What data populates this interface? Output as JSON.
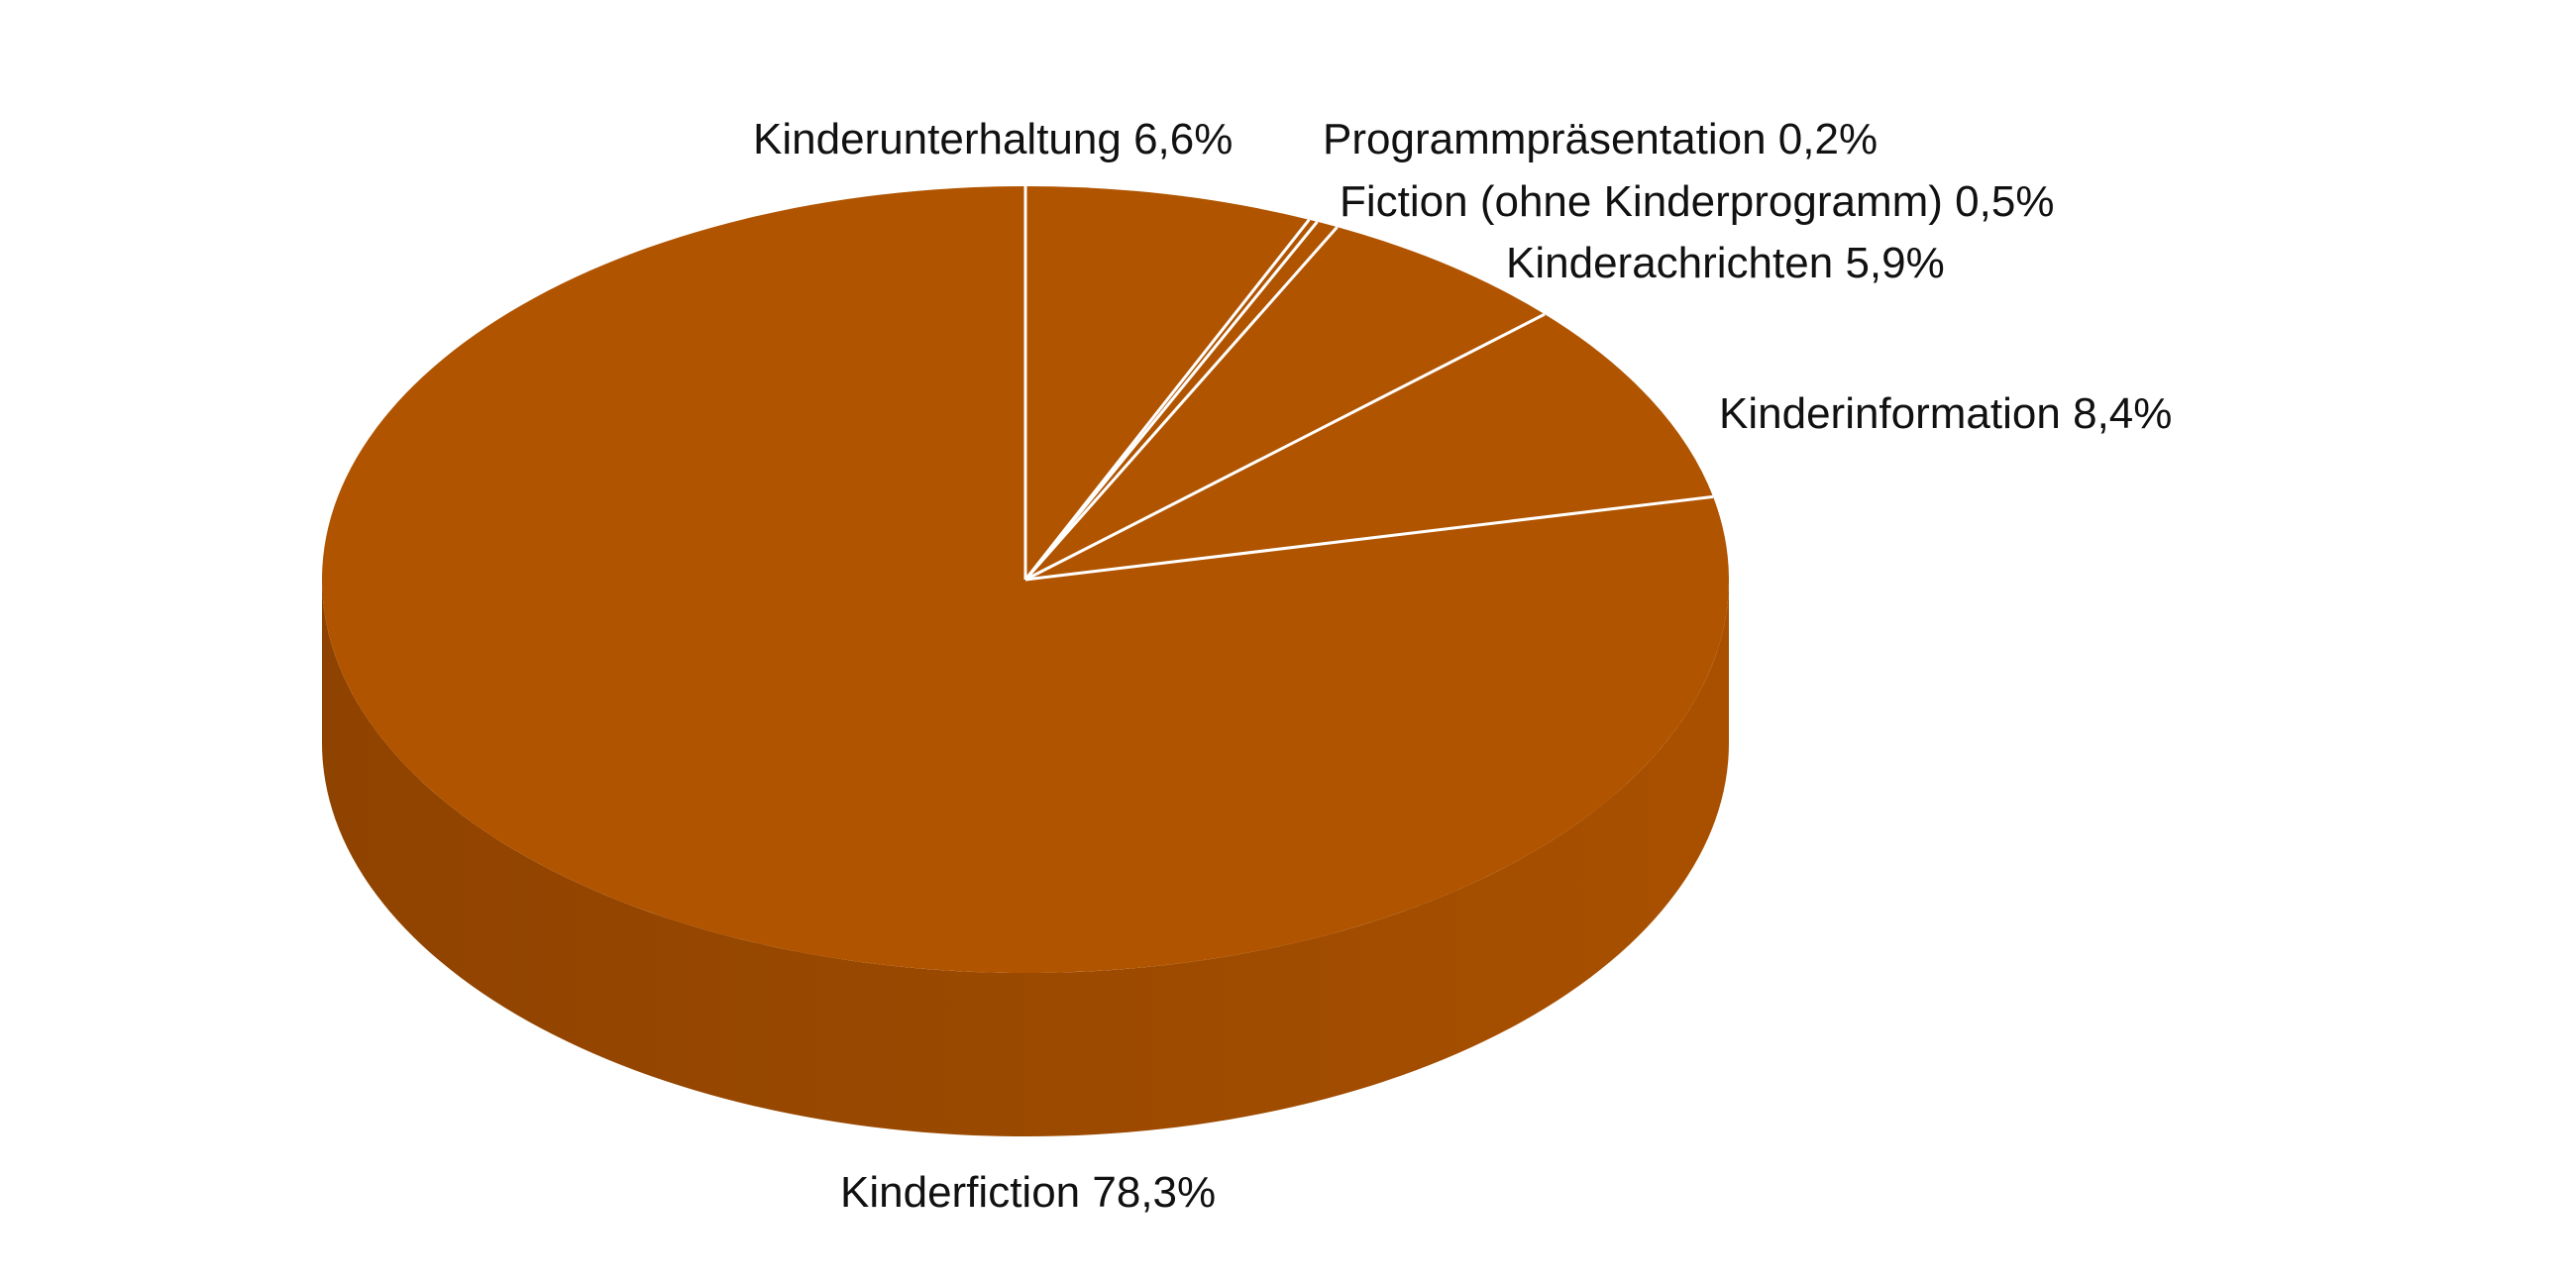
{
  "chart_data": {
    "type": "pie",
    "style": "3d",
    "title": "",
    "unit": "%",
    "slices": [
      {
        "label": "Kinderunterhaltung",
        "value": 6.6,
        "value_text": "6,6%"
      },
      {
        "label": "Programmpräsentation",
        "value": 0.2,
        "value_text": "0,2%"
      },
      {
        "label": "Fiction (ohne Kinderprogramm)",
        "value": 0.5,
        "value_text": "0,5%"
      },
      {
        "label": "Kinderachrichten",
        "value": 5.9,
        "value_text": "5,9%"
      },
      {
        "label": "Kinderinformation",
        "value": 8.4,
        "value_text": "8,4%"
      },
      {
        "label": "Kinderfiction",
        "value": 78.3,
        "value_text": "78,3%"
      }
    ],
    "colors": {
      "top": "#b15400",
      "side_dark": "#8f4300",
      "side_light": "#a95000",
      "separator": "#ffffff"
    },
    "legend": "none",
    "grid": false
  }
}
